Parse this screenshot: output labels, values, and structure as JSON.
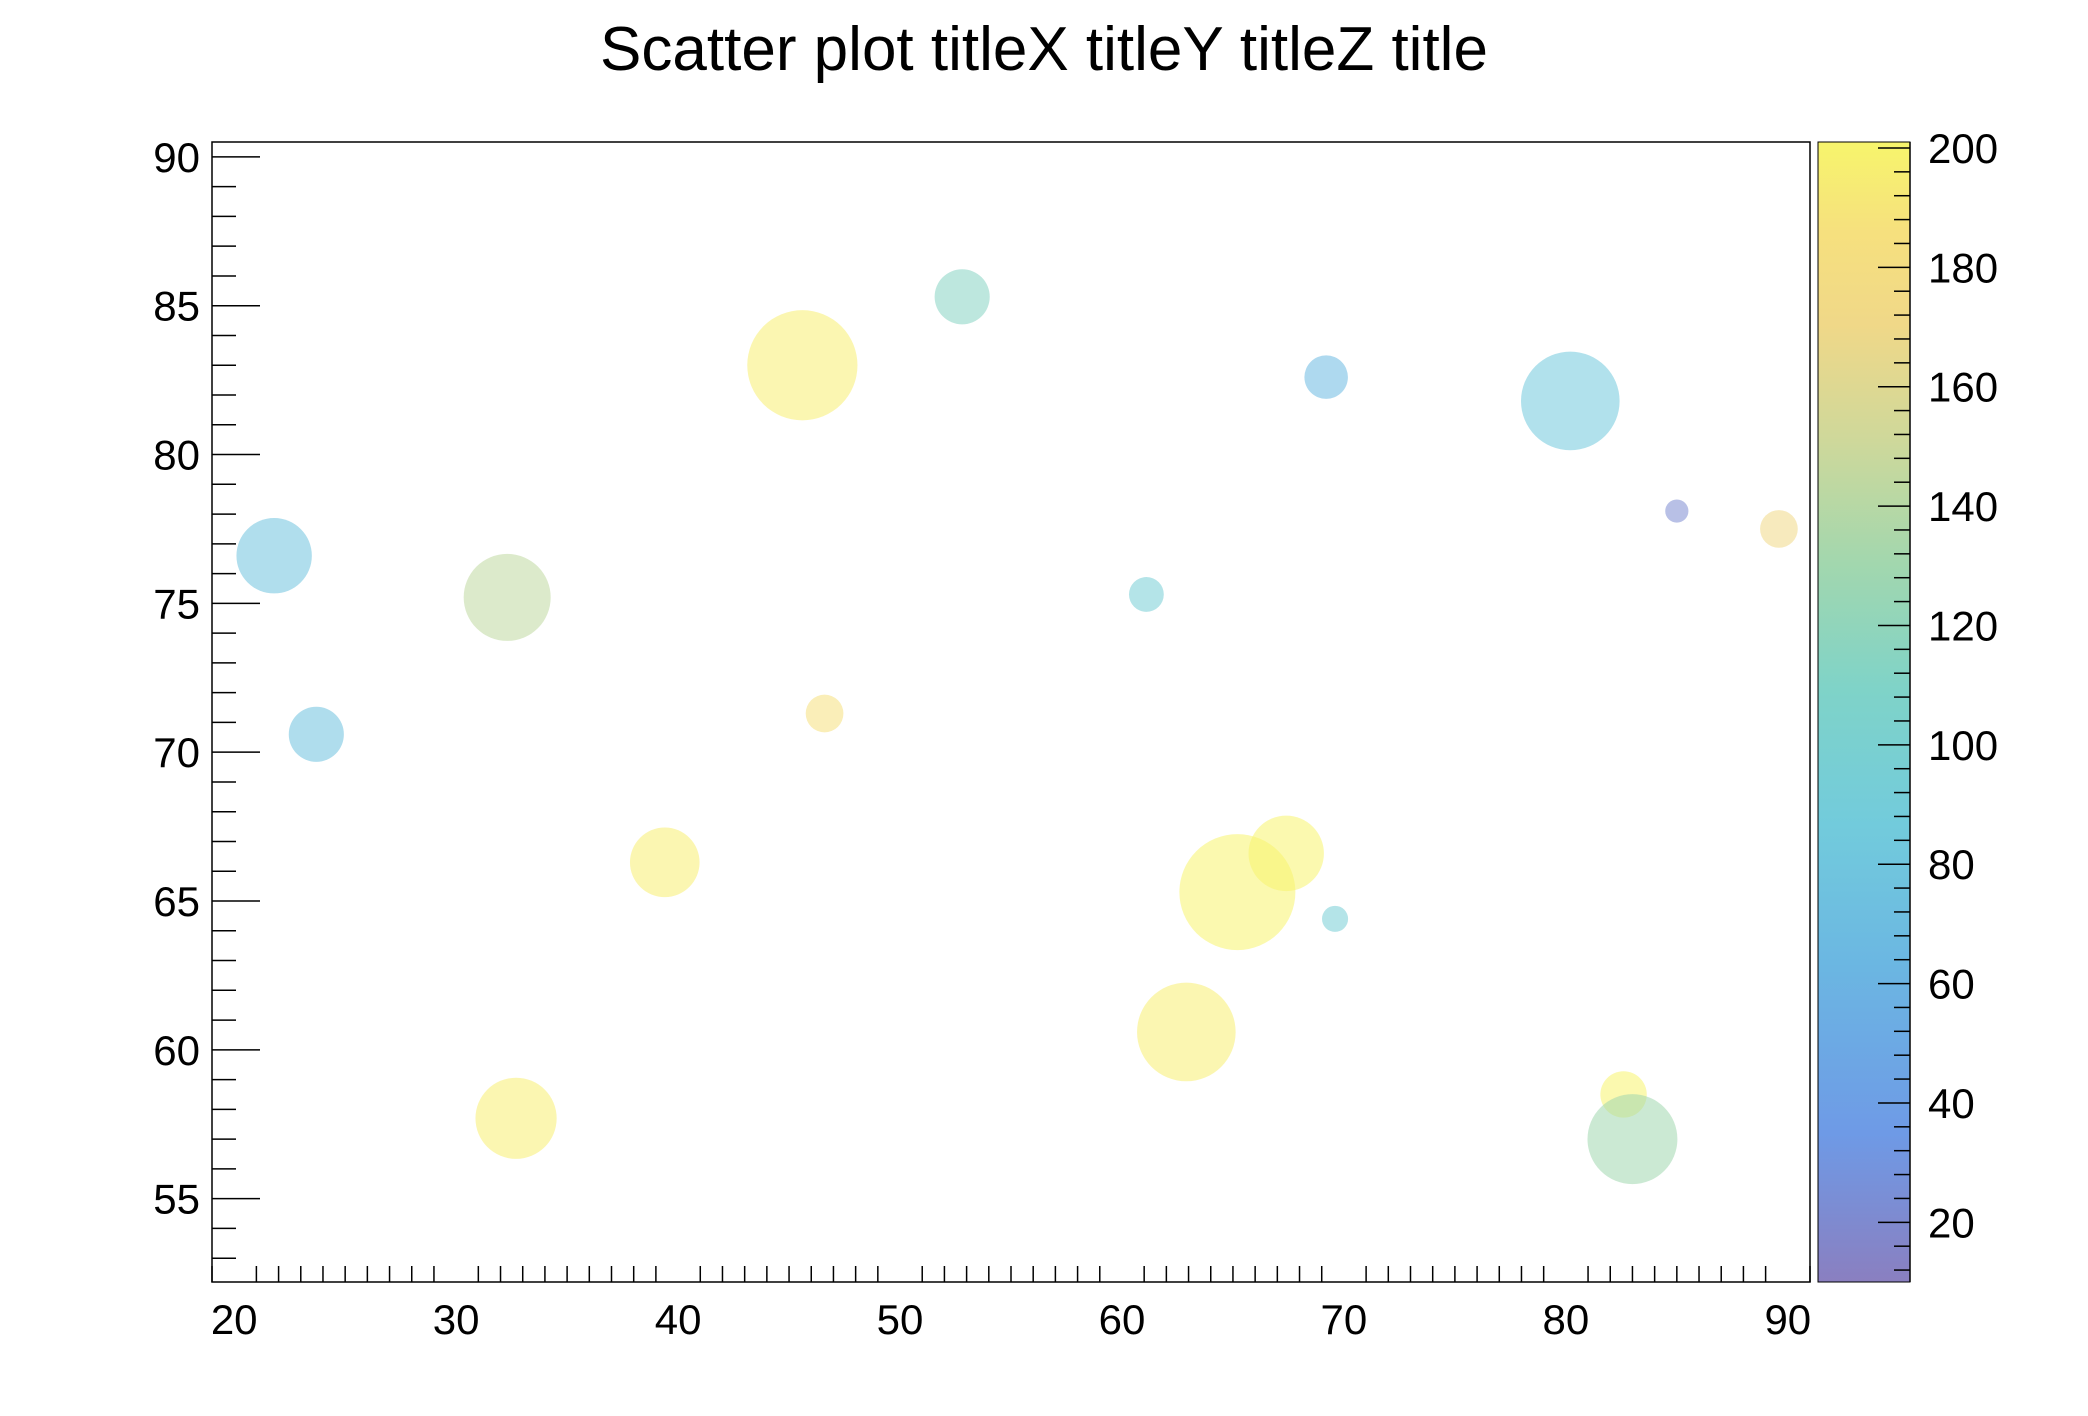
{
  "chart_data": {
    "type": "scatter",
    "title": "Scatter plot titleX titleY titleZ title",
    "xlim": [
      19,
      91
    ],
    "ylim": [
      52.2,
      90.5
    ],
    "x_ticks": [
      "20",
      "30",
      "40",
      "50",
      "60",
      "70",
      "80",
      "90"
    ],
    "y_ticks": [
      "55",
      "60",
      "65",
      "70",
      "75",
      "80",
      "85",
      "90"
    ],
    "x_tick_values": [
      20,
      30,
      40,
      50,
      60,
      70,
      80,
      90
    ],
    "y_tick_values": [
      55,
      60,
      65,
      70,
      75,
      80,
      85,
      90
    ],
    "colorbar": {
      "zlim": [
        10,
        201
      ],
      "tick_values": [
        20,
        40,
        60,
        80,
        100,
        120,
        140,
        160,
        180,
        200
      ],
      "tick_labels": [
        "20",
        "40",
        "60",
        "80",
        "100",
        "120",
        "140",
        "160",
        "180",
        "200"
      ],
      "colors": [
        "#8a7fc0",
        "#6e9ae6",
        "#6bb7e2",
        "#72cbdc",
        "#7fd3c8",
        "#a2d7ae",
        "#cfd89a",
        "#f0d888",
        "#f6e07e",
        "#f7f56c"
      ]
    },
    "grid": false,
    "legend": "colorbar-right",
    "points": [
      {
        "x": 21.8,
        "y": 76.6,
        "z": 65,
        "size": 2.6
      },
      {
        "x": 23.7,
        "y": 70.6,
        "z": 63,
        "size": 1.9
      },
      {
        "x": 32.3,
        "y": 75.2,
        "z": 130,
        "size": 3.0
      },
      {
        "x": 32.7,
        "y": 57.7,
        "z": 195,
        "size": 2.8
      },
      {
        "x": 39.4,
        "y": 66.3,
        "z": 195,
        "size": 2.4
      },
      {
        "x": 45.6,
        "y": 83.0,
        "z": 195,
        "size": 3.8
      },
      {
        "x": 46.6,
        "y": 71.3,
        "z": 180,
        "size": 1.3
      },
      {
        "x": 52.8,
        "y": 85.3,
        "z": 100,
        "size": 1.9
      },
      {
        "x": 61.1,
        "y": 75.3,
        "z": 80,
        "size": 1.2
      },
      {
        "x": 62.9,
        "y": 60.6,
        "z": 195,
        "size": 3.4
      },
      {
        "x": 65.2,
        "y": 65.3,
        "z": 200,
        "size": 4.0
      },
      {
        "x": 67.4,
        "y": 66.6,
        "z": 200,
        "size": 2.6
      },
      {
        "x": 69.2,
        "y": 82.6,
        "z": 55,
        "size": 1.5
      },
      {
        "x": 69.6,
        "y": 64.4,
        "z": 80,
        "size": 0.9
      },
      {
        "x": 80.2,
        "y": 81.8,
        "z": 70,
        "size": 3.4
      },
      {
        "x": 82.6,
        "y": 58.5,
        "z": 200,
        "size": 1.6
      },
      {
        "x": 83.0,
        "y": 57.0,
        "z": 115,
        "size": 3.1
      },
      {
        "x": 85.0,
        "y": 78.1,
        "z": 20,
        "size": 0.8
      },
      {
        "x": 89.6,
        "y": 77.5,
        "z": 160,
        "size": 1.3
      }
    ]
  }
}
